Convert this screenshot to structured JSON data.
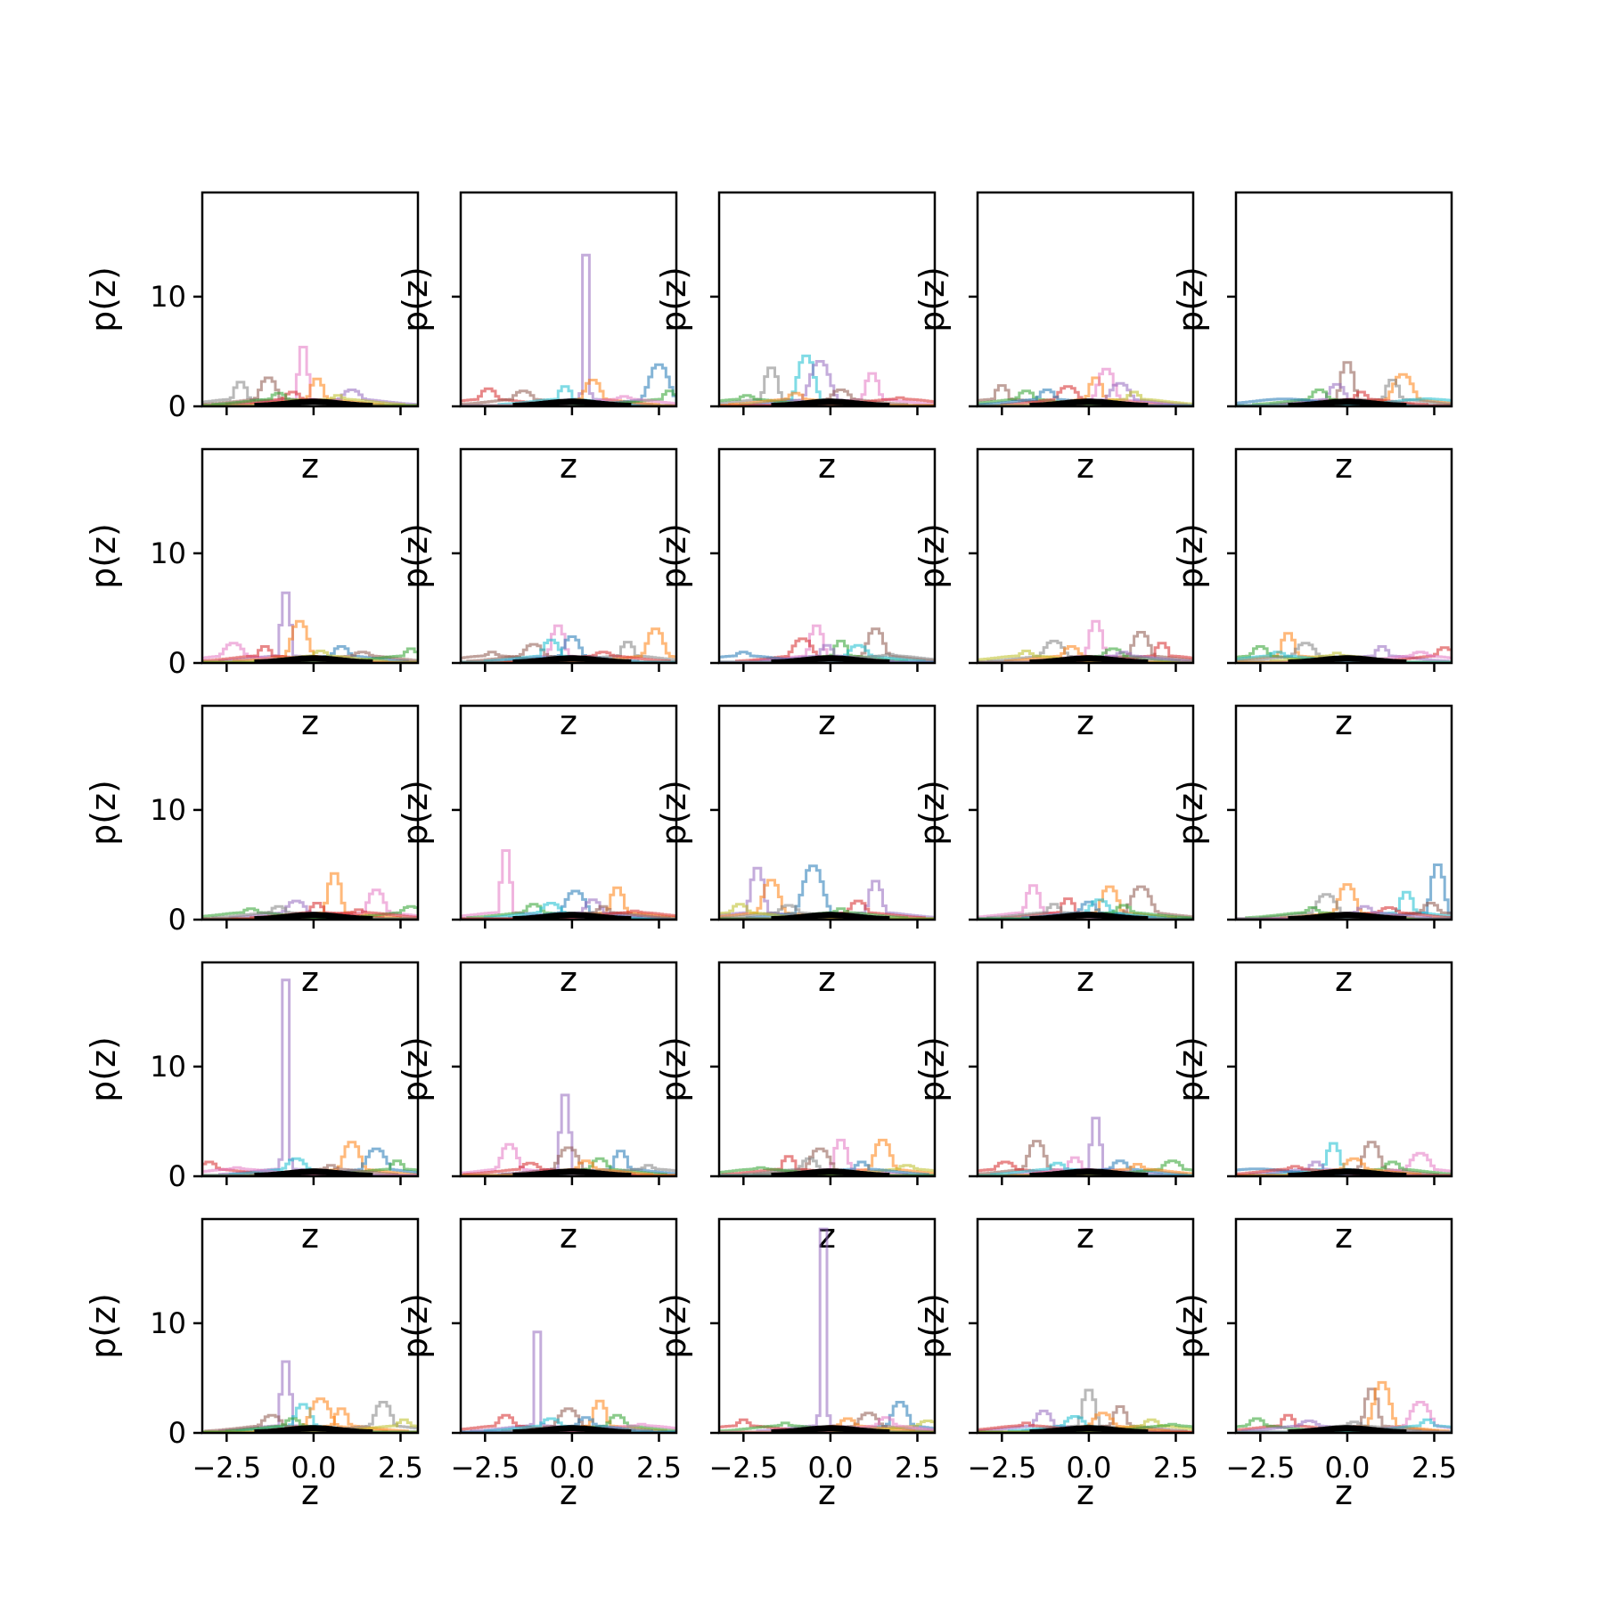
{
  "chart_data": {
    "type": "histogram-grid",
    "rows": 5,
    "cols": 5,
    "xlabel": "z",
    "ylabel": "p(z)",
    "xlim": [
      -3.2,
      3.0
    ],
    "ylim": [
      0,
      19.5
    ],
    "xticks": [
      -2.5,
      0.0,
      2.5
    ],
    "xtick_labels": [
      "−2.5",
      "0.0",
      "2.5"
    ],
    "yticks": [
      0,
      10
    ],
    "ytick_labels": [
      "0",
      "10"
    ],
    "series_colors": [
      "#1f77b4",
      "#ff7f0e",
      "#2ca02c",
      "#d62728",
      "#9467bd",
      "#8c564b",
      "#e377c2",
      "#7f7f7f",
      "#bcbd22",
      "#17becf"
    ],
    "reference_color": "#000000",
    "panels": [
      {
        "row": 0,
        "col": 0,
        "peaks": [
          [
            -2.1,
            2.2,
            7
          ],
          [
            -1.3,
            2.6,
            5
          ],
          [
            -0.3,
            5.4,
            6
          ],
          [
            0.1,
            2.5,
            1
          ],
          [
            -0.6,
            1.3,
            3
          ],
          [
            1.1,
            1.5,
            4
          ],
          [
            0.7,
            1.0,
            8
          ],
          [
            -1.0,
            1.2,
            2
          ]
        ]
      },
      {
        "row": 0,
        "col": 1,
        "peaks": [
          [
            0.4,
            13.8,
            4
          ],
          [
            -2.4,
            1.6,
            3
          ],
          [
            -1.4,
            1.4,
            5
          ],
          [
            -0.2,
            1.8,
            9
          ],
          [
            0.6,
            2.4,
            1
          ],
          [
            2.5,
            3.8,
            0
          ],
          [
            2.8,
            1.4,
            2
          ],
          [
            1.5,
            0.9,
            6
          ]
        ]
      },
      {
        "row": 0,
        "col": 2,
        "peaks": [
          [
            -1.7,
            3.5,
            7
          ],
          [
            -0.7,
            4.6,
            9
          ],
          [
            -0.3,
            4.1,
            4
          ],
          [
            1.2,
            3.0,
            6
          ],
          [
            -2.4,
            1.0,
            2
          ],
          [
            0.3,
            1.5,
            5
          ],
          [
            2.0,
            0.8,
            3
          ],
          [
            -1.0,
            1.2,
            1
          ]
        ]
      },
      {
        "row": 0,
        "col": 3,
        "peaks": [
          [
            -2.5,
            1.9,
            5
          ],
          [
            -1.8,
            1.4,
            2
          ],
          [
            -0.6,
            1.8,
            3
          ],
          [
            0.2,
            2.6,
            1
          ],
          [
            0.5,
            3.4,
            6
          ],
          [
            0.9,
            2.1,
            4
          ],
          [
            1.3,
            1.3,
            8
          ],
          [
            -1.2,
            1.5,
            0
          ]
        ]
      },
      {
        "row": 0,
        "col": 4,
        "peaks": [
          [
            0.0,
            4.0,
            5
          ],
          [
            -0.3,
            2.0,
            4
          ],
          [
            1.6,
            2.9,
            1
          ],
          [
            1.3,
            2.4,
            7
          ],
          [
            -0.8,
            1.5,
            2
          ],
          [
            -1.8,
            0.6,
            0
          ],
          [
            0.4,
            1.3,
            3
          ],
          [
            2.3,
            0.7,
            9
          ]
        ]
      },
      {
        "row": 1,
        "col": 0,
        "peaks": [
          [
            -0.8,
            6.4,
            4
          ],
          [
            -0.4,
            3.8,
            1
          ],
          [
            -2.3,
            1.8,
            6
          ],
          [
            -1.4,
            1.5,
            3
          ],
          [
            0.8,
            1.5,
            0
          ],
          [
            1.4,
            1.0,
            5
          ],
          [
            2.8,
            1.3,
            2
          ],
          [
            0.2,
            1.1,
            8
          ]
        ]
      },
      {
        "row": 1,
        "col": 1,
        "peaks": [
          [
            -0.4,
            3.4,
            6
          ],
          [
            0.0,
            2.4,
            0
          ],
          [
            -1.1,
            1.7,
            5
          ],
          [
            1.6,
            1.9,
            7
          ],
          [
            2.4,
            3.1,
            1
          ],
          [
            0.9,
            1.0,
            3
          ],
          [
            -2.3,
            1.0,
            5
          ],
          [
            -0.6,
            2.1,
            9
          ]
        ]
      },
      {
        "row": 1,
        "col": 2,
        "peaks": [
          [
            -0.4,
            3.4,
            6
          ],
          [
            1.3,
            3.1,
            5
          ],
          [
            -0.8,
            2.2,
            3
          ],
          [
            0.3,
            2.0,
            2
          ],
          [
            -2.5,
            1.0,
            0
          ],
          [
            0.8,
            1.6,
            9
          ],
          [
            -0.1,
            1.6,
            4
          ],
          [
            1.7,
            0.8,
            7
          ]
        ]
      },
      {
        "row": 1,
        "col": 3,
        "peaks": [
          [
            0.2,
            3.8,
            6
          ],
          [
            1.5,
            2.8,
            5
          ],
          [
            -1.0,
            2.0,
            7
          ],
          [
            2.1,
            1.8,
            3
          ],
          [
            -0.5,
            1.5,
            1
          ],
          [
            0.7,
            1.3,
            2
          ],
          [
            -1.8,
            1.1,
            8
          ],
          [
            1.0,
            1.0,
            4
          ]
        ]
      },
      {
        "row": 1,
        "col": 4,
        "peaks": [
          [
            -1.7,
            2.7,
            1
          ],
          [
            -2.5,
            1.5,
            2
          ],
          [
            -1.2,
            1.8,
            7
          ],
          [
            1.0,
            1.5,
            4
          ],
          [
            2.8,
            1.4,
            3
          ],
          [
            2.1,
            1.0,
            6
          ],
          [
            -0.3,
            0.9,
            8
          ],
          [
            -2.0,
            1.0,
            9
          ]
        ]
      },
      {
        "row": 2,
        "col": 0,
        "peaks": [
          [
            0.6,
            4.2,
            1
          ],
          [
            1.8,
            2.7,
            6
          ],
          [
            -0.5,
            1.7,
            4
          ],
          [
            0.1,
            1.5,
            3
          ],
          [
            -1.8,
            1.0,
            2
          ],
          [
            2.8,
            1.2,
            2
          ],
          [
            1.3,
            0.9,
            3
          ],
          [
            -1.0,
            1.2,
            7
          ]
        ]
      },
      {
        "row": 2,
        "col": 1,
        "peaks": [
          [
            -1.9,
            6.3,
            6
          ],
          [
            -1.1,
            1.4,
            2
          ],
          [
            0.1,
            2.6,
            0
          ],
          [
            1.3,
            2.9,
            1
          ],
          [
            0.6,
            1.8,
            4
          ],
          [
            -0.6,
            1.5,
            9
          ],
          [
            0.9,
            1.2,
            5
          ],
          [
            1.8,
            0.8,
            3
          ]
        ]
      },
      {
        "row": 2,
        "col": 2,
        "peaks": [
          [
            -2.1,
            4.7,
            4
          ],
          [
            -1.7,
            3.6,
            1
          ],
          [
            -0.5,
            4.9,
            0
          ],
          [
            1.3,
            3.5,
            4
          ],
          [
            0.8,
            1.7,
            3
          ],
          [
            -1.2,
            1.3,
            7
          ],
          [
            0.3,
            1.0,
            2
          ],
          [
            -2.6,
            1.4,
            8
          ]
        ]
      },
      {
        "row": 2,
        "col": 3,
        "peaks": [
          [
            -1.6,
            3.1,
            6
          ],
          [
            0.6,
            3.0,
            1
          ],
          [
            1.5,
            3.0,
            5
          ],
          [
            -0.6,
            1.9,
            3
          ],
          [
            0.0,
            1.6,
            0
          ],
          [
            0.3,
            1.8,
            9
          ],
          [
            -1.0,
            1.4,
            7
          ],
          [
            1.0,
            1.3,
            2
          ]
        ]
      },
      {
        "row": 2,
        "col": 4,
        "peaks": [
          [
            2.6,
            5.0,
            0
          ],
          [
            0.0,
            3.2,
            1
          ],
          [
            -0.6,
            2.3,
            7
          ],
          [
            1.7,
            2.5,
            9
          ],
          [
            2.4,
            1.5,
            5
          ],
          [
            1.2,
            1.1,
            3
          ],
          [
            -1.0,
            1.1,
            2
          ],
          [
            0.5,
            1.2,
            4
          ]
        ]
      },
      {
        "row": 3,
        "col": 0,
        "peaks": [
          [
            -0.8,
            17.9,
            4
          ],
          [
            1.1,
            3.1,
            1
          ],
          [
            1.8,
            2.5,
            0
          ],
          [
            2.4,
            1.4,
            2
          ],
          [
            -3.0,
            1.3,
            3
          ],
          [
            -0.5,
            1.6,
            9
          ],
          [
            0.5,
            1.0,
            5
          ],
          [
            -2.2,
            0.8,
            6
          ]
        ]
      },
      {
        "row": 3,
        "col": 1,
        "peaks": [
          [
            -0.2,
            7.4,
            4
          ],
          [
            -1.8,
            2.9,
            6
          ],
          [
            -0.1,
            2.6,
            5
          ],
          [
            1.4,
            2.3,
            0
          ],
          [
            0.8,
            1.6,
            2
          ],
          [
            -1.2,
            1.2,
            3
          ],
          [
            2.2,
            1.0,
            7
          ],
          [
            0.4,
            1.4,
            1
          ]
        ]
      },
      {
        "row": 3,
        "col": 2,
        "peaks": [
          [
            0.3,
            3.3,
            6
          ],
          [
            1.5,
            3.3,
            1
          ],
          [
            -0.3,
            2.5,
            5
          ],
          [
            -1.2,
            1.8,
            3
          ],
          [
            -0.6,
            1.6,
            7
          ],
          [
            2.2,
            1.0,
            8
          ],
          [
            0.9,
            1.3,
            0
          ],
          [
            -2.0,
            0.8,
            2
          ]
        ]
      },
      {
        "row": 3,
        "col": 3,
        "peaks": [
          [
            0.2,
            5.3,
            4
          ],
          [
            -1.5,
            3.2,
            5
          ],
          [
            -2.4,
            1.3,
            3
          ],
          [
            -0.4,
            1.7,
            6
          ],
          [
            0.9,
            1.4,
            0
          ],
          [
            2.4,
            1.4,
            2
          ],
          [
            1.4,
            1.1,
            1
          ],
          [
            -0.9,
            1.2,
            9
          ]
        ]
      },
      {
        "row": 3,
        "col": 4,
        "peaks": [
          [
            -0.4,
            3.0,
            9
          ],
          [
            0.7,
            3.1,
            5
          ],
          [
            2.1,
            2.1,
            6
          ],
          [
            -0.9,
            1.3,
            4
          ],
          [
            1.3,
            1.3,
            2
          ],
          [
            0.2,
            1.6,
            1
          ],
          [
            -2.6,
            0.6,
            0
          ],
          [
            -1.5,
            0.9,
            3
          ]
        ]
      },
      {
        "row": 4,
        "col": 0,
        "peaks": [
          [
            -0.8,
            6.5,
            4
          ],
          [
            -0.3,
            2.6,
            9
          ],
          [
            0.2,
            3.1,
            1
          ],
          [
            0.8,
            2.2,
            1
          ],
          [
            2.0,
            2.8,
            7
          ],
          [
            -1.2,
            1.6,
            5
          ],
          [
            2.6,
            1.2,
            8
          ],
          [
            -0.6,
            1.3,
            2
          ]
        ]
      },
      {
        "row": 4,
        "col": 1,
        "peaks": [
          [
            -1.0,
            9.2,
            4
          ],
          [
            -1.9,
            1.6,
            3
          ],
          [
            -0.1,
            2.2,
            5
          ],
          [
            0.8,
            2.9,
            1
          ],
          [
            1.3,
            1.6,
            2
          ],
          [
            -0.6,
            1.3,
            9
          ],
          [
            2.0,
            0.8,
            6
          ],
          [
            0.4,
            1.4,
            0
          ]
        ]
      },
      {
        "row": 4,
        "col": 2,
        "peaks": [
          [
            -0.2,
            18.6,
            4
          ],
          [
            2.0,
            2.8,
            0
          ],
          [
            1.1,
            1.8,
            5
          ],
          [
            -2.5,
            1.2,
            3
          ],
          [
            0.5,
            1.3,
            1
          ],
          [
            2.8,
            1.1,
            8
          ],
          [
            -1.3,
            0.9,
            2
          ],
          [
            1.6,
            1.4,
            6
          ]
        ]
      },
      {
        "row": 4,
        "col": 3,
        "peaks": [
          [
            0.0,
            3.9,
            7
          ],
          [
            -1.3,
            2.0,
            4
          ],
          [
            -0.4,
            1.5,
            9
          ],
          [
            0.9,
            2.4,
            5
          ],
          [
            1.8,
            1.2,
            8
          ],
          [
            0.4,
            1.8,
            1
          ],
          [
            -1.8,
            0.9,
            3
          ],
          [
            2.4,
            0.8,
            2
          ]
        ]
      },
      {
        "row": 4,
        "col": 4,
        "peaks": [
          [
            0.7,
            4.0,
            5
          ],
          [
            1.0,
            4.6,
            1
          ],
          [
            2.1,
            2.8,
            6
          ],
          [
            -1.7,
            1.6,
            3
          ],
          [
            -2.6,
            1.3,
            2
          ],
          [
            -1.1,
            1.1,
            4
          ],
          [
            2.3,
            1.2,
            9
          ],
          [
            0.2,
            1.0,
            7
          ]
        ]
      }
    ]
  }
}
